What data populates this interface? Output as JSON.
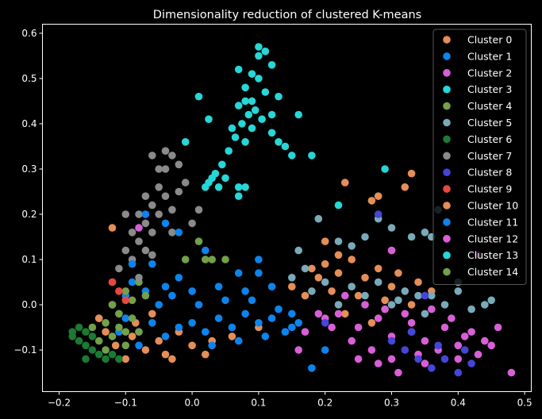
{
  "chart_data": {
    "type": "scatter",
    "title": "Dimensionality reduction of clustered K-means",
    "xlabel": "",
    "ylabel": "",
    "xlim": [
      -0.225,
      0.51
    ],
    "ylim": [
      -0.192,
      0.62
    ],
    "xticks": [
      -0.2,
      -0.1,
      0.0,
      0.1,
      0.2,
      0.3,
      0.4,
      0.5
    ],
    "xtick_labels": [
      "−0.2",
      "−0.1",
      "0.0",
      "0.1",
      "0.2",
      "0.3",
      "0.4",
      "0.5"
    ],
    "yticks": [
      -0.1,
      0.0,
      0.1,
      0.2,
      0.3,
      0.4,
      0.5,
      0.6
    ],
    "ytick_labels": [
      "−0.1",
      "0.0",
      "0.1",
      "0.2",
      "0.3",
      "0.4",
      "0.5",
      "0.6"
    ],
    "grid": false,
    "legend_position": "top-right",
    "series": [
      {
        "name": "Cluster 0",
        "color": "#e58e57",
        "points": [
          [
            -0.13,
            -0.06
          ],
          [
            -0.115,
            -0.09
          ],
          [
            -0.1,
            -0.12
          ],
          [
            -0.085,
            -0.04
          ],
          [
            -0.07,
            -0.1
          ],
          [
            -0.05,
            -0.08
          ],
          [
            -0.03,
            -0.12
          ],
          [
            -0.12,
            0.0
          ],
          [
            -0.06,
            -0.02
          ],
          [
            -0.02,
            -0.06
          ],
          [
            0.0,
            -0.09
          ],
          [
            0.03,
            -0.08
          ],
          [
            0.06,
            -0.07
          ],
          [
            0.1,
            -0.05
          ],
          [
            -0.14,
            -0.03
          ],
          [
            -0.09,
            -0.07
          ],
          [
            -0.04,
            -0.11
          ],
          [
            0.02,
            -0.11
          ],
          [
            0.21,
            0.03
          ],
          [
            0.25,
            0.02
          ],
          [
            0.29,
            0.01
          ],
          [
            0.33,
            0.0
          ],
          [
            0.23,
            -0.02
          ],
          [
            0.27,
            -0.04
          ],
          [
            0.36,
            0.03
          ],
          [
            0.19,
            0.06
          ],
          [
            0.22,
            0.07
          ],
          [
            0.26,
            0.06
          ],
          [
            0.3,
            0.04
          ],
          [
            0.2,
            0.14
          ],
          [
            0.22,
            0.11
          ],
          [
            0.23,
            0.27
          ],
          [
            0.27,
            0.23
          ],
          [
            0.33,
            0.29
          ],
          [
            0.32,
            0.26
          ],
          [
            0.28,
            0.24
          ],
          [
            0.17,
            0.02
          ],
          [
            0.15,
            0.04
          ],
          [
            0.24,
            0.1
          ],
          [
            0.18,
            0.08
          ],
          [
            0.34,
            0.05
          ],
          [
            0.31,
            0.07
          ]
        ]
      },
      {
        "name": "Cluster 1",
        "color": "#0d84ed",
        "points": [
          [
            -0.1,
            -0.03
          ],
          [
            -0.08,
            -0.06
          ],
          [
            -0.06,
            -0.04
          ],
          [
            -0.04,
            -0.07
          ],
          [
            -0.02,
            -0.05
          ],
          [
            0.0,
            -0.04
          ],
          [
            0.02,
            -0.06
          ],
          [
            0.04,
            -0.03
          ],
          [
            0.06,
            -0.05
          ],
          [
            0.08,
            -0.02
          ],
          [
            0.1,
            -0.04
          ],
          [
            0.12,
            -0.03
          ],
          [
            -0.05,
            0.0
          ],
          [
            -0.07,
            0.03
          ],
          [
            -0.03,
            0.02
          ],
          [
            0.01,
            0.0
          ],
          [
            0.05,
            0.01
          ],
          [
            0.09,
            0.01
          ],
          [
            0.13,
            -0.01
          ],
          [
            0.15,
            -0.05
          ],
          [
            -0.09,
            0.05
          ],
          [
            -0.02,
            0.06
          ],
          [
            0.03,
            -0.09
          ],
          [
            0.07,
            -0.08
          ],
          [
            0.11,
            -0.07
          ],
          [
            0.15,
            -0.02
          ],
          [
            -0.06,
            0.09
          ],
          [
            -0.1,
            0.02
          ],
          [
            -0.04,
            0.04
          ],
          [
            0.0,
            0.03
          ],
          [
            0.04,
            0.04
          ],
          [
            0.08,
            0.03
          ],
          [
            -0.11,
            -0.06
          ],
          [
            -0.08,
            -0.09
          ],
          [
            0.14,
            -0.06
          ],
          [
            0.16,
            -0.04
          ],
          [
            0.12,
            0.04
          ],
          [
            0.1,
            0.07
          ],
          [
            0.2,
            -0.1
          ],
          [
            0.18,
            -0.14
          ]
        ]
      },
      {
        "name": "Cluster 2",
        "color": "#d85fd8",
        "points": [
          [
            0.22,
            -0.02
          ],
          [
            0.25,
            -0.05
          ],
          [
            0.28,
            -0.03
          ],
          [
            0.3,
            -0.07
          ],
          [
            0.33,
            -0.04
          ],
          [
            0.35,
            -0.08
          ],
          [
            0.38,
            -0.05
          ],
          [
            0.4,
            -0.09
          ],
          [
            0.42,
            -0.06
          ],
          [
            0.44,
            -0.08
          ],
          [
            0.24,
            -0.08
          ],
          [
            0.27,
            -0.1
          ],
          [
            0.3,
            -0.12
          ],
          [
            0.34,
            -0.11
          ],
          [
            0.37,
            -0.1
          ],
          [
            0.4,
            -0.12
          ],
          [
            0.43,
            -0.11
          ],
          [
            0.46,
            -0.05
          ],
          [
            0.48,
            -0.15
          ],
          [
            0.26,
            0.0
          ],
          [
            0.29,
            -0.01
          ],
          [
            0.32,
            -0.02
          ],
          [
            0.36,
            -0.01
          ],
          [
            0.39,
            -0.03
          ],
          [
            0.21,
            -0.05
          ],
          [
            0.2,
            -0.03
          ],
          [
            0.23,
            0.02
          ],
          [
            0.28,
            -0.13
          ],
          [
            0.35,
            -0.13
          ],
          [
            0.45,
            -0.09
          ],
          [
            0.31,
            -0.15
          ],
          [
            0.19,
            -0.02
          ],
          [
            0.17,
            -0.06
          ],
          [
            0.16,
            -0.1
          ],
          [
            0.3,
            0.12
          ],
          [
            0.41,
            -0.07
          ],
          [
            0.25,
            -0.12
          ],
          [
            0.33,
            -0.06
          ]
        ]
      },
      {
        "name": "Cluster 3",
        "color": "#27d6d6",
        "points": [
          [
            0.07,
            0.44
          ],
          [
            0.08,
            0.48
          ],
          [
            0.09,
            0.51
          ],
          [
            0.1,
            0.55
          ],
          [
            0.11,
            0.47
          ],
          [
            0.085,
            0.42
          ],
          [
            0.075,
            0.4
          ],
          [
            0.09,
            0.45
          ],
          [
            0.1,
            0.5
          ],
          [
            0.065,
            0.37
          ],
          [
            0.055,
            0.34
          ],
          [
            0.045,
            0.31
          ],
          [
            0.035,
            0.29
          ],
          [
            0.025,
            0.27
          ],
          [
            0.06,
            0.39
          ],
          [
            0.08,
            0.36
          ],
          [
            0.095,
            0.43
          ],
          [
            0.105,
            0.41
          ],
          [
            0.12,
            0.38
          ],
          [
            0.13,
            0.36
          ],
          [
            0.14,
            0.35
          ],
          [
            0.15,
            0.33
          ],
          [
            0.16,
            0.42
          ],
          [
            0.13,
            0.46
          ],
          [
            0.12,
            0.53
          ],
          [
            0.11,
            0.56
          ],
          [
            0.1,
            0.57
          ],
          [
            0.07,
            0.52
          ],
          [
            0.08,
            0.45
          ],
          [
            0.09,
            0.39
          ],
          [
            0.05,
            0.28
          ],
          [
            0.04,
            0.26
          ],
          [
            0.03,
            0.28
          ],
          [
            0.02,
            0.26
          ],
          [
            0.01,
            0.46
          ],
          [
            0.025,
            0.41
          ],
          [
            0.07,
            0.24
          ],
          [
            0.08,
            0.26
          ],
          [
            0.18,
            0.33
          ],
          [
            0.12,
            0.42
          ]
        ]
      },
      {
        "name": "Cluster 4",
        "color": "#72a14a",
        "points": [
          [
            -0.12,
            0.0
          ],
          [
            -0.1,
            0.03
          ],
          [
            -0.08,
            0.05
          ],
          [
            0.01,
            0.14
          ],
          [
            0.03,
            0.1
          ],
          [
            -0.01,
            0.1
          ],
          [
            -0.09,
            0.01
          ],
          [
            -0.11,
            -0.02
          ],
          [
            -0.07,
            0.02
          ]
        ]
      },
      {
        "name": "Cluster 5",
        "color": "#79aab9",
        "points": [
          [
            0.18,
            0.03
          ],
          [
            0.22,
            0.0
          ],
          [
            0.26,
            0.02
          ],
          [
            0.3,
            0.0
          ],
          [
            0.34,
            0.02
          ],
          [
            0.38,
            0.0
          ],
          [
            0.42,
            -0.01
          ],
          [
            0.2,
            0.05
          ],
          [
            0.24,
            0.04
          ],
          [
            0.28,
            0.05
          ],
          [
            0.32,
            0.03
          ],
          [
            0.36,
            0.02
          ],
          [
            0.4,
            0.03
          ],
          [
            0.44,
            0.0
          ],
          [
            0.15,
            0.06
          ],
          [
            0.17,
            0.08
          ],
          [
            0.16,
            0.12
          ],
          [
            0.22,
            0.14
          ],
          [
            0.26,
            0.15
          ],
          [
            0.28,
            0.19
          ],
          [
            0.3,
            0.17
          ],
          [
            0.35,
            0.16
          ],
          [
            0.36,
            0.15
          ],
          [
            0.37,
            0.21
          ],
          [
            0.31,
            0.01
          ],
          [
            0.35,
            -0.02
          ],
          [
            0.4,
            0.05
          ],
          [
            0.45,
            0.01
          ],
          [
            0.19,
            0.19
          ],
          [
            0.24,
            0.13
          ],
          [
            0.33,
            0.15
          ]
        ]
      },
      {
        "name": "Cluster 6",
        "color": "#1c7a33",
        "points": [
          [
            -0.18,
            -0.07
          ],
          [
            -0.17,
            -0.08
          ],
          [
            -0.16,
            -0.06
          ],
          [
            -0.15,
            -0.1
          ],
          [
            -0.17,
            -0.05
          ],
          [
            -0.16,
            -0.09
          ],
          [
            -0.14,
            -0.11
          ],
          [
            -0.13,
            -0.12
          ],
          [
            -0.12,
            -0.11
          ],
          [
            -0.15,
            -0.07
          ],
          [
            -0.18,
            -0.06
          ],
          [
            -0.16,
            -0.12
          ],
          [
            -0.11,
            -0.12
          ]
        ]
      },
      {
        "name": "Cluster 7",
        "color": "#8a8a8a",
        "points": [
          [
            -0.09,
            0.1
          ],
          [
            -0.08,
            0.14
          ],
          [
            -0.07,
            0.18
          ],
          [
            -0.06,
            0.22
          ],
          [
            -0.05,
            0.26
          ],
          [
            -0.04,
            0.3
          ],
          [
            -0.03,
            0.33
          ],
          [
            -0.02,
            0.31
          ],
          [
            -0.06,
            0.16
          ],
          [
            -0.07,
            0.12
          ],
          [
            -0.08,
            0.2
          ],
          [
            -0.05,
            0.2
          ],
          [
            -0.04,
            0.24
          ],
          [
            -0.03,
            0.21
          ],
          [
            -0.02,
            0.25
          ],
          [
            -0.01,
            0.27
          ],
          [
            -0.09,
            0.16
          ],
          [
            -0.1,
            0.12
          ],
          [
            -0.11,
            0.08
          ],
          [
            -0.06,
            0.11
          ],
          [
            -0.07,
            0.24
          ],
          [
            -0.05,
            0.3
          ],
          [
            -0.04,
            0.34
          ],
          [
            -0.06,
            0.33
          ],
          [
            0.0,
            0.18
          ],
          [
            0.01,
            0.21
          ],
          [
            -0.03,
            0.16
          ],
          [
            -0.08,
            0.06
          ],
          [
            -0.12,
            0.05
          ],
          [
            -0.1,
            0.2
          ]
        ]
      },
      {
        "name": "Cluster 8",
        "color": "#4545d8",
        "points": [
          [
            0.3,
            -0.08
          ],
          [
            0.32,
            -0.1
          ],
          [
            0.34,
            -0.12
          ],
          [
            0.36,
            -0.14
          ],
          [
            0.38,
            -0.12
          ],
          [
            0.4,
            -0.15
          ],
          [
            0.42,
            -0.13
          ],
          [
            0.33,
            -0.06
          ],
          [
            0.37,
            -0.09
          ],
          [
            0.41,
            -0.1
          ],
          [
            0.28,
            0.2
          ],
          [
            0.35,
            0.02
          ],
          [
            0.2,
            -0.04
          ]
        ]
      },
      {
        "name": "Cluster 9",
        "color": "#e8483c",
        "points": [
          [
            -0.12,
            0.05
          ],
          [
            -0.11,
            0.03
          ],
          [
            -0.1,
            0.01
          ]
        ]
      },
      {
        "name": "Cluster 10",
        "color": "#e58e57",
        "points": [
          [
            -0.12,
            0.17
          ],
          [
            -0.14,
            -0.03
          ],
          [
            0.2,
            0.09
          ],
          [
            0.28,
            0.08
          ]
        ]
      },
      {
        "name": "Cluster 11",
        "color": "#0d84ed",
        "points": [
          [
            -0.07,
            0.2
          ],
          [
            -0.04,
            0.18
          ],
          [
            -0.02,
            0.16
          ],
          [
            -0.09,
            0.09
          ],
          [
            0.02,
            0.12
          ],
          [
            0.07,
            0.07
          ],
          [
            0.1,
            0.1
          ]
        ]
      },
      {
        "name": "Cluster 12",
        "color": "#d85fd8",
        "points": [
          [
            -0.08,
            0.17
          ],
          [
            0.3,
            0.12
          ],
          [
            0.43,
            0.11
          ]
        ]
      },
      {
        "name": "Cluster 13",
        "color": "#27d6d6",
        "points": [
          [
            -0.01,
            0.36
          ],
          [
            0.07,
            0.26
          ],
          [
            0.29,
            0.3
          ],
          [
            0.22,
            0.22
          ]
        ]
      },
      {
        "name": "Cluster 14",
        "color": "#72a14a",
        "points": [
          [
            -0.15,
            -0.05
          ],
          [
            -0.14,
            -0.08
          ],
          [
            -0.13,
            -0.04
          ],
          [
            -0.12,
            -0.07
          ],
          [
            -0.11,
            -0.05
          ],
          [
            -0.1,
            -0.09
          ],
          [
            -0.09,
            -0.03
          ],
          [
            -0.08,
            -0.06
          ],
          [
            -0.13,
            -0.1
          ],
          [
            -0.11,
            -0.02
          ],
          [
            -0.1,
            -0.06
          ],
          [
            0.02,
            0.1
          ],
          [
            0.05,
            0.1
          ]
        ]
      }
    ]
  }
}
